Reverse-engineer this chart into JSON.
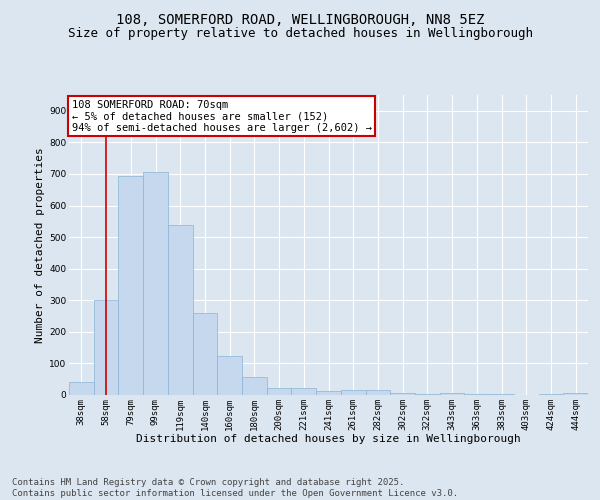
{
  "title_line1": "108, SOMERFORD ROAD, WELLINGBOROUGH, NN8 5EZ",
  "title_line2": "Size of property relative to detached houses in Wellingborough",
  "xlabel": "Distribution of detached houses by size in Wellingborough",
  "ylabel": "Number of detached properties",
  "categories": [
    "38sqm",
    "58sqm",
    "79sqm",
    "99sqm",
    "119sqm",
    "140sqm",
    "160sqm",
    "180sqm",
    "200sqm",
    "221sqm",
    "241sqm",
    "261sqm",
    "282sqm",
    "302sqm",
    "322sqm",
    "343sqm",
    "363sqm",
    "383sqm",
    "403sqm",
    "424sqm",
    "444sqm"
  ],
  "values": [
    42,
    300,
    693,
    706,
    537,
    260,
    122,
    57,
    22,
    22,
    12,
    17,
    17,
    5,
    3,
    7,
    3,
    2,
    0,
    2,
    5
  ],
  "bar_color": "#c5d8ed",
  "bar_edge_color": "#8ab4d4",
  "background_color": "#dce6f0",
  "plot_background": "#dce6f0",
  "grid_color": "#ffffff",
  "annotation_text": "108 SOMERFORD ROAD: 70sqm\n← 5% of detached houses are smaller (152)\n94% of semi-detached houses are larger (2,602) →",
  "annotation_box_color": "#ffffff",
  "annotation_box_edge": "#cc0000",
  "vline_x_index": 1,
  "vline_color": "#cc0000",
  "ylim": [
    0,
    950
  ],
  "yticks": [
    0,
    100,
    200,
    300,
    400,
    500,
    600,
    700,
    800,
    900
  ],
  "footer_line1": "Contains HM Land Registry data © Crown copyright and database right 2025.",
  "footer_line2": "Contains public sector information licensed under the Open Government Licence v3.0.",
  "title_fontsize": 10,
  "subtitle_fontsize": 9,
  "tick_fontsize": 6.5,
  "xlabel_fontsize": 8,
  "ylabel_fontsize": 8,
  "annotation_fontsize": 7.5,
  "footer_fontsize": 6.5
}
